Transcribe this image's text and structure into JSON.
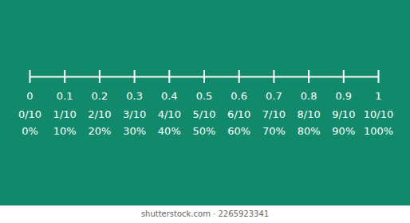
{
  "chart_data": {
    "type": "number_line",
    "xlim": [
      0,
      1
    ],
    "xticks": [
      0,
      0.1,
      0.2,
      0.3,
      0.4,
      0.5,
      0.6,
      0.7,
      0.8,
      0.9,
      1
    ],
    "fraction_labels": [
      "0/10",
      "1/10",
      "2/10",
      "3/10",
      "4/10",
      "5/10",
      "6/10",
      "7/10",
      "8/10",
      "9/10",
      "10/10"
    ],
    "percent_labels": [
      "0%",
      "10%",
      "20%",
      "30%",
      "40%",
      "50%",
      "60%",
      "70%",
      "80%",
      "90%",
      "100%"
    ],
    "color": "#ffffff",
    "caption": "shutterstock.com · 2265923341"
  }
}
